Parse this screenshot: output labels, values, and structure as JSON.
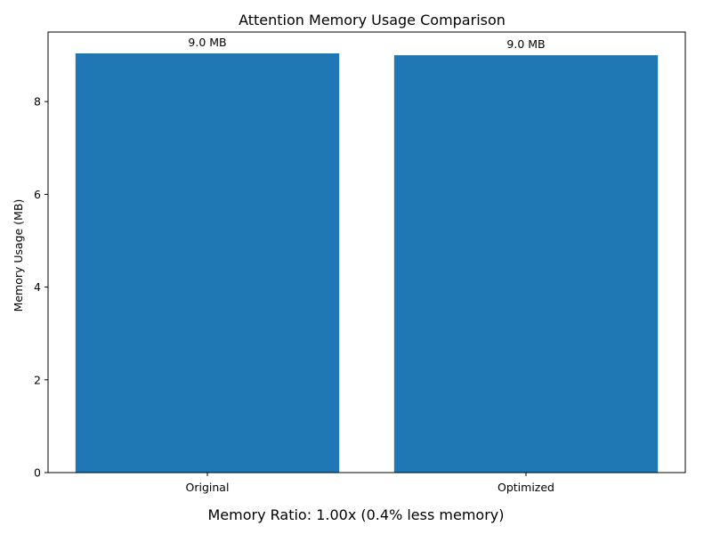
{
  "chart_data": {
    "type": "bar",
    "title": "Attention Memory Usage Comparison",
    "xlabel": "",
    "ylabel": "Memory Usage (MB)",
    "categories": [
      "Original",
      "Optimized"
    ],
    "values": [
      9.04,
      9.0
    ],
    "data_labels": [
      "9.0 MB",
      "9.0 MB"
    ],
    "ylim": [
      0,
      9.5
    ],
    "yticks": [
      0,
      2,
      4,
      6,
      8
    ],
    "bar_color": "#1f77b4",
    "grid": false,
    "legend": "none"
  },
  "footer": {
    "text": "Memory Ratio: 1.00x (0.4% less memory)"
  }
}
